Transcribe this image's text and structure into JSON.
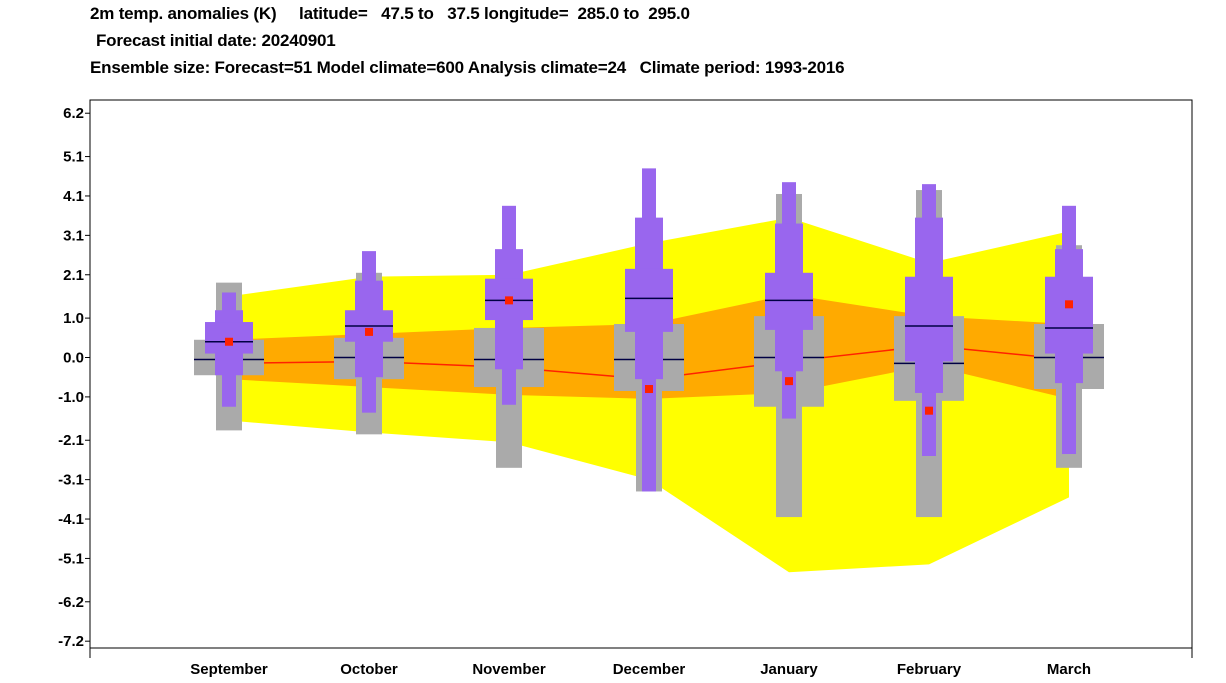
{
  "chart_data": {
    "type": "box",
    "title_lines": [
      "2m temp. anomalies (K)     latitude=   47.5 to   37.5 longitude=  285.0 to  295.0",
      "Forecast initial date: 20240901",
      "Ensemble size: Forecast=51 Model climate=600 Analysis climate=24   Climate period: 1993-2016"
    ],
    "categories": [
      "September",
      "October",
      "November",
      "December",
      "January",
      "February",
      "March"
    ],
    "y_ticks": [
      "6.2",
      "5.1",
      "4.1",
      "3.1",
      "2.1",
      "1.0",
      "0.0",
      "-1.0",
      "-2.1",
      "-3.1",
      "-4.1",
      "-5.1",
      "-6.2",
      "-7.2"
    ],
    "ylim": [
      -7.4,
      6.4
    ],
    "analysis_climate_outer": [
      {
        "low": -1.6,
        "high": 1.55
      },
      {
        "low": -1.9,
        "high": 2.05
      },
      {
        "low": -2.15,
        "high": 2.1
      },
      {
        "low": -3.1,
        "high": 2.9
      },
      {
        "low": -5.45,
        "high": 3.55
      },
      {
        "low": -5.25,
        "high": 2.4
      },
      {
        "low": -3.55,
        "high": 3.2
      }
    ],
    "analysis_climate_inner": [
      {
        "low": -0.55,
        "high": 0.45
      },
      {
        "low": -0.75,
        "high": 0.6
      },
      {
        "low": -0.95,
        "high": 0.75
      },
      {
        "low": -1.05,
        "high": 0.85
      },
      {
        "low": -0.9,
        "high": 1.6
      },
      {
        "low": -0.2,
        "high": 1.05
      },
      {
        "low": -1.05,
        "high": 0.85
      }
    ],
    "analysis_median_line": [
      -0.15,
      -0.1,
      -0.25,
      -0.55,
      -0.1,
      0.3,
      -0.05
    ],
    "model_climate": [
      {
        "min": -1.85,
        "q1": -0.45,
        "median": -0.05,
        "q3": 0.45,
        "max": 1.9
      },
      {
        "min": -1.95,
        "q1": -0.55,
        "median": 0.0,
        "q3": 0.5,
        "max": 2.15
      },
      {
        "min": -2.8,
        "q1": -0.75,
        "median": -0.05,
        "q3": 0.75,
        "max": 2.25
      },
      {
        "min": -3.4,
        "q1": -0.85,
        "median": -0.05,
        "q3": 0.85,
        "max": 2.75
      },
      {
        "min": -4.05,
        "q1": -1.25,
        "median": 0.0,
        "q3": 1.05,
        "max": 4.15
      },
      {
        "min": -4.05,
        "q1": -1.1,
        "median": -0.15,
        "q3": 1.05,
        "max": 4.25
      },
      {
        "min": -2.8,
        "q1": -0.8,
        "median": 0.0,
        "q3": 0.85,
        "max": 2.85
      }
    ],
    "forecast": [
      {
        "min": -1.25,
        "p10": -0.45,
        "q1": 0.1,
        "median": 0.4,
        "q3": 0.9,
        "p90": 1.2,
        "max": 1.65,
        "mean": 0.4
      },
      {
        "min": -1.4,
        "p10": -0.5,
        "q1": 0.4,
        "median": 0.8,
        "q3": 1.2,
        "p90": 1.95,
        "max": 2.7,
        "mean": 0.65
      },
      {
        "min": -1.2,
        "p10": -0.3,
        "q1": 0.95,
        "median": 1.45,
        "q3": 2.0,
        "p90": 2.75,
        "max": 3.85,
        "mean": 1.45
      },
      {
        "min": -3.4,
        "p10": -0.55,
        "q1": 0.65,
        "median": 1.5,
        "q3": 2.25,
        "p90": 3.55,
        "max": 4.8,
        "mean": -0.8
      },
      {
        "min": -1.55,
        "p10": -0.35,
        "q1": 0.7,
        "median": 1.45,
        "q3": 2.15,
        "p90": 3.4,
        "max": 4.45,
        "mean": -0.6
      },
      {
        "min": -2.5,
        "p10": -0.9,
        "q1": -0.1,
        "median": 0.8,
        "q3": 2.05,
        "p90": 3.55,
        "max": 4.4,
        "mean": -1.35
      },
      {
        "min": -2.45,
        "p10": -0.65,
        "q1": 0.1,
        "median": 0.75,
        "q3": 2.05,
        "p90": 2.75,
        "max": 3.85,
        "mean": 1.35
      }
    ],
    "colors": {
      "outer_band": "#ffff00",
      "inner_band": "#ffaa00",
      "median_line": "#ff2200",
      "model_box": "#aaaaaa",
      "forecast_box": "#9966ee",
      "median_mark": "#000044",
      "mean_dot": "#ff2200"
    },
    "grid": false,
    "legend": "none"
  }
}
